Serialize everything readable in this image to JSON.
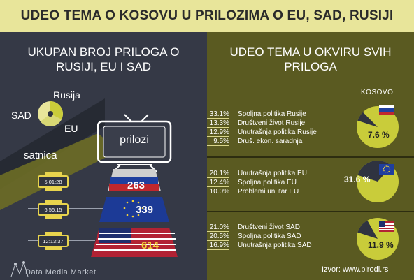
{
  "header": {
    "title": "UDEO TEMA O KOSOVU U PRILOZIMA O EU, SAD, RUSIJI"
  },
  "left": {
    "title_line1": "UKUPAN BROJ PRILOGA O",
    "title_line2": "RUSIJI, EU I SAD",
    "legend": {
      "rusija": "Rusija",
      "sad": "SAD",
      "eu": "EU"
    },
    "tv_label": "prilozi",
    "satnica_label": "satnica",
    "times": [
      "5:01:28",
      "6:56:15",
      "12:13:37"
    ],
    "logo": "Data Media Market"
  },
  "right": {
    "title_line1": "UDEO TEMA U OKVIRU SVIH",
    "title_line2": "PRILOGA",
    "kosovo_label": "KOSOVO",
    "source": "Izvor: www.birodi.rs",
    "sections": [
      {
        "rows": [
          {
            "pct": "33.1%",
            "label": "Spoljna politika Rusije"
          },
          {
            "pct": "13.3%",
            "label": "Društveni život Rusije"
          },
          {
            "pct": "12.9%",
            "label": "Unutrašnja politika Rusije"
          },
          {
            "pct": "9.5%",
            "label": "Druš. ekon. saradnja"
          }
        ],
        "kosovo_label": "7.6 %"
      },
      {
        "rows": [
          {
            "pct": "20.1%",
            "label": "Unutrašnja politika EU"
          },
          {
            "pct": "12.4%",
            "label": "Spoljna politika EU"
          },
          {
            "pct": "10.0%",
            "label": "Problemi unutar EU"
          }
        ],
        "kosovo_label": "31.6 %"
      },
      {
        "rows": [
          {
            "pct": "21.0%",
            "label": "Društveni život SAD"
          },
          {
            "pct": "20.5%",
            "label": "Spoljna politika SAD"
          },
          {
            "pct": "16.9%",
            "label": "Unutrašnja politika SAD"
          }
        ],
        "kosovo_label": "11.9 %"
      }
    ]
  },
  "chart_data": [
    {
      "type": "bar",
      "title": "UKUPAN BROJ PRILOGA O RUSIJI, EU I SAD",
      "categories": [
        "Rusija",
        "EU",
        "SAD"
      ],
      "values": [
        263,
        339,
        614
      ],
      "durations": [
        "5:01:28",
        "6:56:15",
        "12:13:37"
      ]
    },
    {
      "type": "pie",
      "kosovo_share": 7.6
    },
    {
      "type": "pie",
      "kosovo_share": 31.6
    },
    {
      "type": "pie",
      "kosovo_share": 11.9
    }
  ],
  "colors": {
    "accent": "#e8e59a",
    "pie_fill": "#c9cc3a",
    "pie_slice": "#2f3340",
    "left_bg": "#353946",
    "right_bg": "#5a5a21"
  }
}
